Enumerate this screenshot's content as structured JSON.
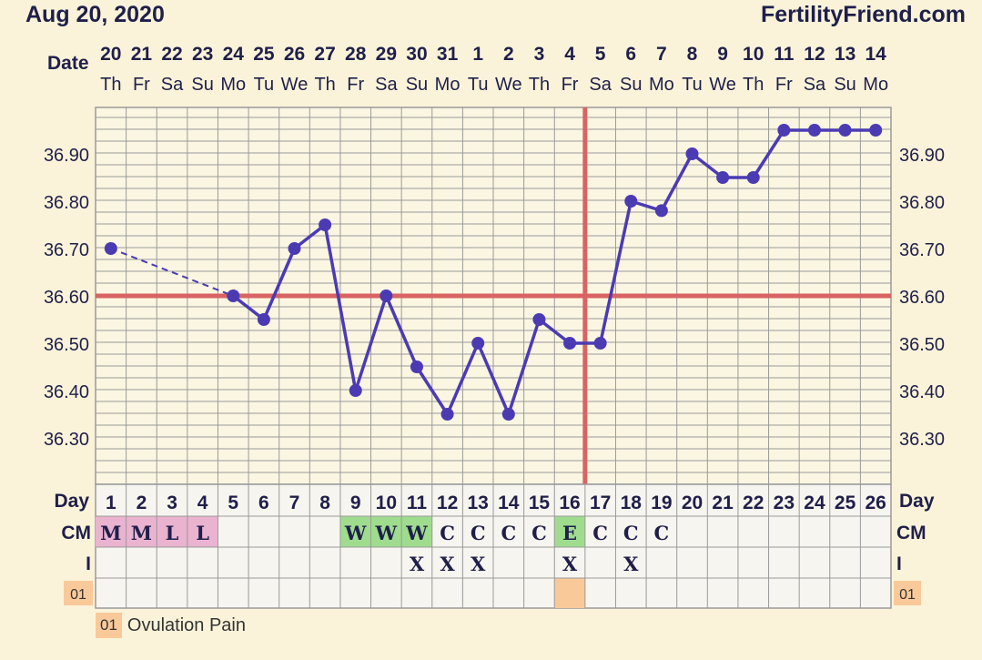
{
  "header": {
    "date": "Aug 20, 2020",
    "site": "FertilityFriend.com"
  },
  "row_labels": {
    "date": "Date",
    "day": "Day",
    "cm": "CM",
    "intercourse": "I"
  },
  "colors": {
    "line": "#4b3bb3",
    "coverline": "#d96363",
    "grid": "#9a9a9a",
    "menses": "#eab3cf",
    "watery": "#9fdc8e",
    "eggwhite": "#9fdc8e",
    "note_chip": "#f9c99a",
    "text": "#1f1f4a"
  },
  "legend": {
    "code": "01",
    "label": "Ovulation Pain"
  },
  "chart_data": {
    "type": "line",
    "title": "",
    "dates": [
      "20",
      "21",
      "22",
      "23",
      "24",
      "25",
      "26",
      "27",
      "28",
      "29",
      "30",
      "31",
      "1",
      "2",
      "3",
      "4",
      "5",
      "6",
      "7",
      "8",
      "9",
      "10",
      "11",
      "12",
      "13",
      "14"
    ],
    "weekdays": [
      "Th",
      "Fr",
      "Sa",
      "Su",
      "Mo",
      "Tu",
      "We",
      "Th",
      "Fr",
      "Sa",
      "Su",
      "Mo",
      "Tu",
      "We",
      "Th",
      "Fr",
      "Sa",
      "Su",
      "Mo",
      "Tu",
      "We",
      "Th",
      "Fr",
      "Sa",
      "Su",
      "Mo"
    ],
    "cycle_days": [
      "1",
      "2",
      "3",
      "4",
      "5",
      "6",
      "7",
      "8",
      "9",
      "10",
      "11",
      "12",
      "13",
      "14",
      "15",
      "16",
      "17",
      "18",
      "19",
      "20",
      "21",
      "22",
      "23",
      "24",
      "25",
      "26"
    ],
    "temperatures": [
      36.7,
      null,
      null,
      null,
      36.6,
      36.55,
      36.7,
      36.75,
      36.4,
      36.6,
      36.45,
      36.35,
      36.5,
      36.35,
      36.55,
      36.5,
      36.5,
      36.8,
      36.78,
      36.9,
      36.85,
      36.85,
      36.95,
      36.95,
      36.95,
      36.95
    ],
    "y_ticks": [
      "36.90",
      "36.80",
      "36.70",
      "36.60",
      "36.50",
      "36.40",
      "36.30"
    ],
    "ylim": [
      36.22,
      37.0
    ],
    "coverline": 36.6,
    "ovulation_cycle_day": 17,
    "cervical_mucus": [
      "M",
      "M",
      "L",
      "L",
      "",
      "",
      "",
      "",
      "W",
      "W",
      "W",
      "C",
      "C",
      "C",
      "C",
      "E",
      "C",
      "C",
      "C",
      "",
      "",
      "",
      "",
      "",
      "",
      ""
    ],
    "intercourse": [
      "",
      "",
      "",
      "",
      "",
      "",
      "",
      "",
      "",
      "",
      "X",
      "X",
      "X",
      "",
      "",
      "X",
      "",
      "X",
      "",
      "",
      "",
      "",
      "",
      "",
      "",
      ""
    ],
    "notes": [
      "",
      "",
      "",
      "",
      "",
      "",
      "",
      "",
      "",
      "",
      "",
      "",
      "",
      "",
      "",
      "01",
      "",
      "",
      "",
      "",
      "",
      "",
      "",
      "",
      "",
      ""
    ],
    "grid": true
  }
}
